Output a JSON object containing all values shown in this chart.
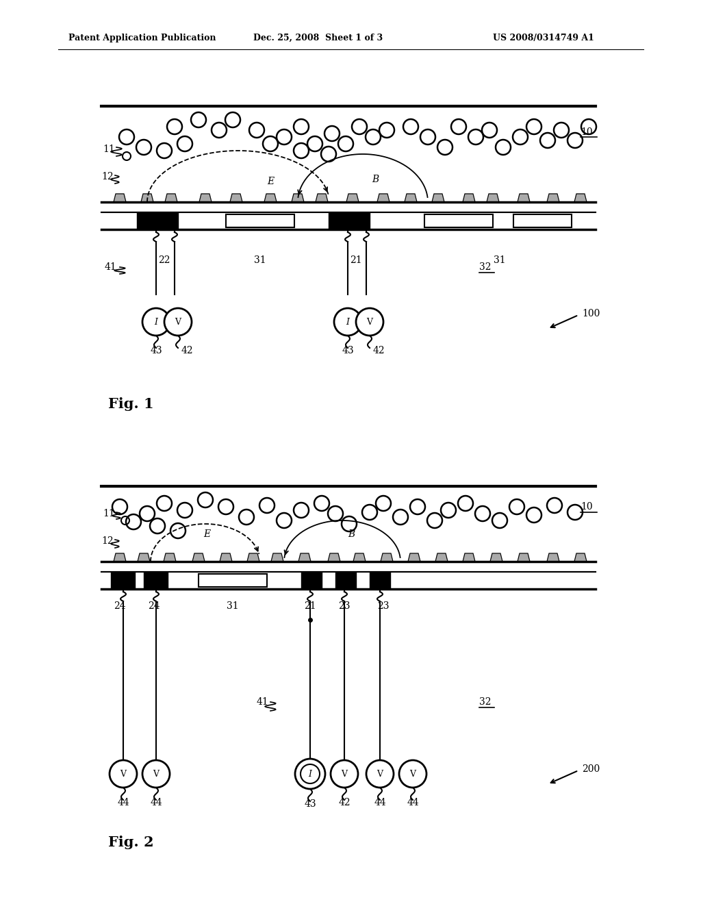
{
  "background_color": "#ffffff",
  "header_left": "Patent Application Publication",
  "header_center": "Dec. 25, 2008  Sheet 1 of 3",
  "header_right": "US 2008/0314749 A1",
  "fig1_label": "Fig. 1",
  "fig2_label": "Fig. 2"
}
